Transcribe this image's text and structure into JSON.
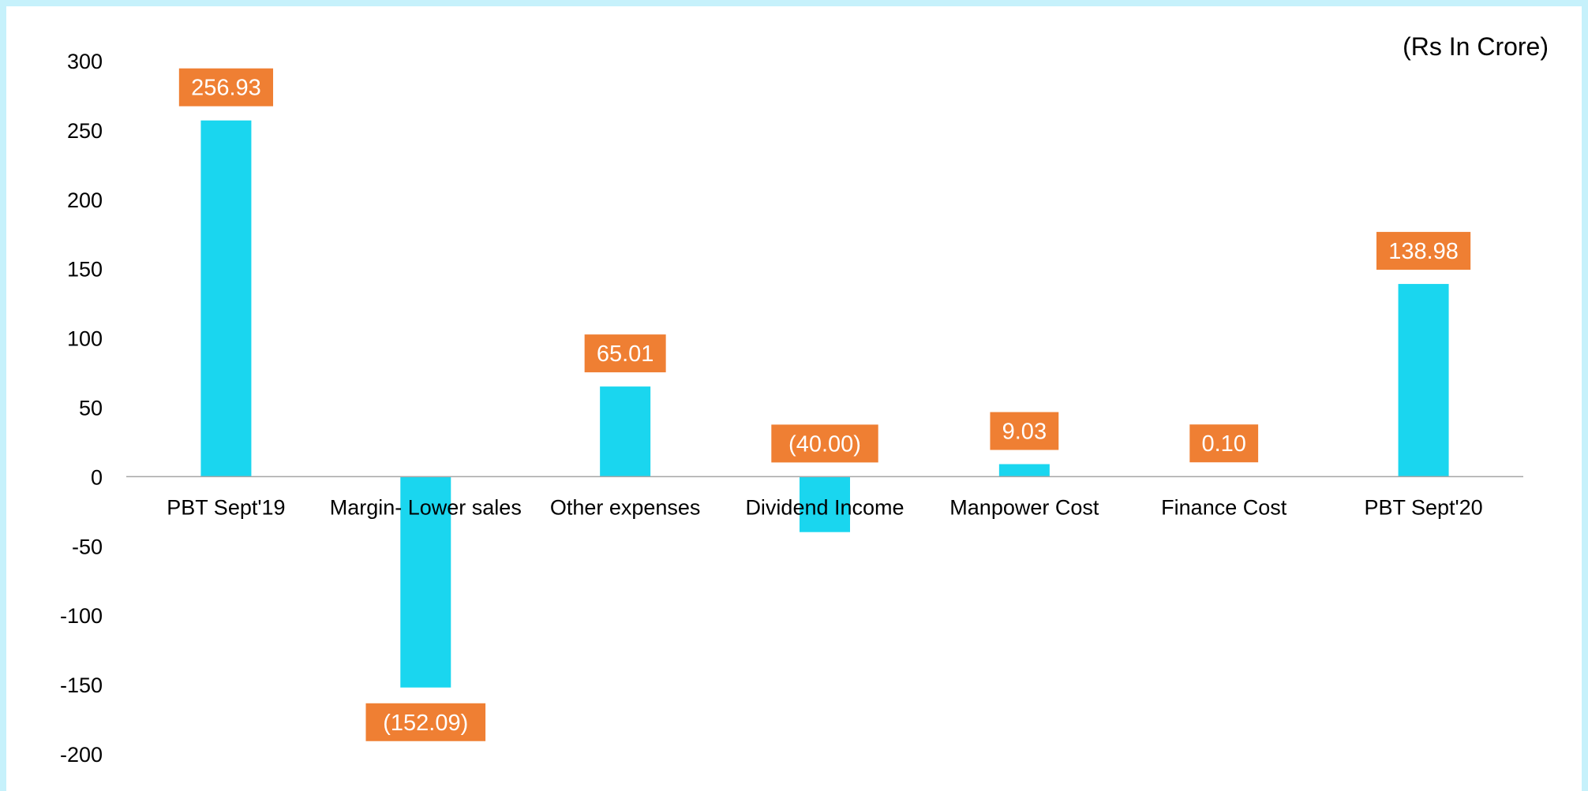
{
  "chart_data": {
    "type": "bar",
    "unit_note": "(Rs In Crore)",
    "categories": [
      "PBT Sept'19",
      "Margin- Lower sales",
      "Other expenses",
      "Dividend Income",
      "Manpower Cost",
      "Finance Cost",
      "PBT Sept'20"
    ],
    "values": [
      256.93,
      -152.09,
      65.01,
      -40.0,
      9.03,
      0.1,
      138.98
    ],
    "data_labels": [
      "256.93",
      "(152.09)",
      "65.01",
      "(40.00)",
      "9.03",
      "0.10",
      "138.98"
    ],
    "yticks": [
      "300",
      "250",
      "200",
      "150",
      "100",
      "50",
      "0",
      "-50",
      "-100",
      "-150",
      "-200"
    ],
    "ylim": [
      -200,
      300
    ],
    "grid": false,
    "legend": "none",
    "colors": {
      "bar": "#1ad6ef",
      "label_bg": "#ef7f33",
      "label_text": "#ffffff",
      "axis": "#a6a6a6"
    }
  }
}
